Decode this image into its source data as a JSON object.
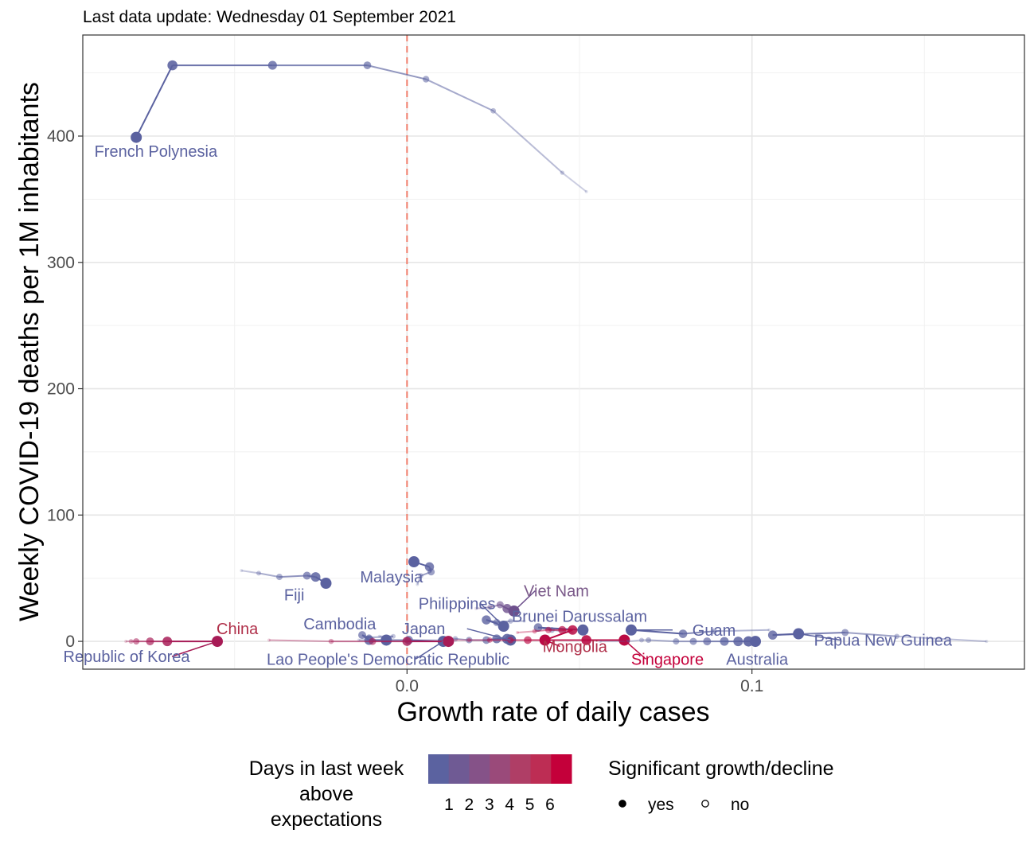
{
  "subtitle": "Last data update: Wednesday 01 September 2021",
  "chart_data": {
    "type": "scatter",
    "xlabel": "Growth rate of daily cases",
    "ylabel": "Weekly COVID-19 deaths per 1M inhabitants",
    "xlim": [
      -0.094,
      0.179
    ],
    "ylim": [
      -22,
      480
    ],
    "x_ticks": [
      {
        "value": 0.0,
        "label": "0.0"
      },
      {
        "value": 0.1,
        "label": "0.1"
      }
    ],
    "y_ticks": [
      {
        "value": 0,
        "label": "0"
      },
      {
        "value": 100,
        "label": "100"
      },
      {
        "value": 200,
        "label": "200"
      },
      {
        "value": 300,
        "label": "300"
      },
      {
        "value": 400,
        "label": "400"
      }
    ],
    "reference_line": {
      "x": 0,
      "style": "dashed",
      "color": "#F07D6B"
    },
    "grid": true,
    "color_scale": {
      "low": "#5B62A0",
      "high": "#C4003A"
    },
    "countries": [
      {
        "name": "French Polynesia",
        "days": 1,
        "label_color": "#5B62A0",
        "points": [
          [
            0.052,
            356
          ],
          [
            0.045,
            371
          ],
          [
            0.025,
            420
          ],
          [
            0.0055,
            445
          ],
          [
            -0.0115,
            456
          ],
          [
            -0.039,
            456
          ],
          [
            -0.068,
            456
          ],
          [
            -0.0785,
            399
          ]
        ]
      },
      {
        "name": "Fiji",
        "days": 1,
        "label_color": "#5B62A0",
        "points": [
          [
            -0.048,
            56
          ],
          [
            -0.043,
            54
          ],
          [
            -0.037,
            51
          ],
          [
            -0.029,
            52
          ],
          [
            -0.0265,
            51
          ],
          [
            -0.0235,
            46
          ]
        ]
      },
      {
        "name": "Malaysia",
        "days": 1,
        "label_color": "#5B62A0",
        "points": [
          [
            0.003,
            45
          ],
          [
            0.004,
            52
          ],
          [
            0.007,
            55
          ],
          [
            0.0065,
            59
          ],
          [
            0.002,
            63
          ]
        ]
      },
      {
        "name": "Viet Nam",
        "days": 2,
        "label_color": "#7B5A8A",
        "points": [
          [
            0.02,
            26
          ],
          [
            0.024,
            27
          ],
          [
            0.027,
            29
          ],
          [
            0.029,
            26
          ],
          [
            0.031,
            24
          ]
        ]
      },
      {
        "name": "Philippines",
        "days": 1,
        "label_color": "#5B62A0",
        "points": [
          [
            0.034,
            16
          ],
          [
            0.03,
            16
          ],
          [
            0.026,
            15
          ],
          [
            0.023,
            17
          ],
          [
            0.028,
            12
          ]
        ]
      },
      {
        "name": "Brunei Darussalam",
        "days": 1,
        "label_color": "#5B62A0",
        "points": [
          [
            0.048,
            7
          ],
          [
            0.042,
            9
          ],
          [
            0.038,
            11
          ],
          [
            0.051,
            9
          ]
        ]
      },
      {
        "name": "Guam",
        "days": 1,
        "label_color": "#5B62A0",
        "points": [
          [
            0.105,
            9
          ],
          [
            0.089,
            8
          ],
          [
            0.08,
            6
          ],
          [
            0.065,
            9
          ]
        ]
      },
      {
        "name": "Papua New Guinea",
        "days": 1,
        "label_color": "#5B62A0",
        "points": [
          [
            0.168,
            0
          ],
          [
            0.142,
            4
          ],
          [
            0.127,
            7
          ],
          [
            0.106,
            5
          ],
          [
            0.1135,
            6
          ]
        ]
      },
      {
        "name": "Cambodia",
        "days": 1,
        "label_color": "#5B62A0",
        "points": [
          [
            -0.008,
            4
          ],
          [
            -0.004,
            4
          ],
          [
            -0.011,
            3
          ],
          [
            -0.013,
            5
          ],
          [
            -0.011,
            1
          ],
          [
            -0.006,
            1
          ]
        ]
      },
      {
        "name": "Japan",
        "days": 1,
        "label_color": "#5B62A0",
        "points": [
          [
            0.0,
            1
          ],
          [
            0.011,
            1
          ],
          [
            0.014,
            2
          ],
          [
            0.018,
            1
          ],
          [
            0.023,
            1
          ],
          [
            0.026,
            2
          ],
          [
            0.029,
            2
          ],
          [
            0.03,
            1
          ]
        ]
      },
      {
        "name": "Lao People's Democratic Republic",
        "days": 1,
        "label_color": "#5B62A0",
        "points": [
          [
            -0.014,
            1
          ],
          [
            -0.006,
            1
          ],
          [
            0.0005,
            1
          ],
          [
            0.0105,
            0
          ]
        ]
      },
      {
        "name": "Mongolia",
        "days": 6,
        "label_color": "#C4003A",
        "points": [
          [
            0.032,
            7
          ],
          [
            0.037,
            8
          ],
          [
            0.041,
            9
          ],
          [
            0.045,
            9
          ],
          [
            0.048,
            9
          ],
          [
            0.04,
            1
          ]
        ]
      },
      {
        "name": "Singapore",
        "days": 6,
        "label_color": "#C4003A",
        "points": [
          [
            0.013,
            1
          ],
          [
            0.018,
            1
          ],
          [
            0.024,
            1
          ],
          [
            0.03,
            1
          ],
          [
            0.035,
            1
          ],
          [
            0.04,
            1
          ],
          [
            0.052,
            1
          ],
          [
            0.063,
            1
          ]
        ]
      },
      {
        "name": "Australia",
        "days": 1,
        "label_color": "#5B62A0",
        "points": [
          [
            0.056,
            0
          ],
          [
            0.064,
            0
          ],
          [
            0.068,
            1
          ],
          [
            0.07,
            1
          ],
          [
            0.078,
            0
          ],
          [
            0.083,
            0
          ],
          [
            0.087,
            0
          ],
          [
            0.092,
            0
          ],
          [
            0.096,
            0
          ],
          [
            0.099,
            0
          ],
          [
            0.101,
            0
          ]
        ]
      },
      {
        "name": "China",
        "days": 5,
        "label_color": "#B0304A",
        "points": [
          [
            -0.04,
            1
          ],
          [
            -0.022,
            0
          ],
          [
            -0.01,
            0
          ],
          [
            0.0,
            0
          ],
          [
            0.012,
            0
          ]
        ]
      },
      {
        "name": "Republic of Korea",
        "days": 5,
        "label_color": "#B0304A",
        "points": [
          [
            -0.0815,
            0
          ],
          [
            -0.08,
            0
          ],
          [
            -0.0785,
            0
          ],
          [
            -0.0745,
            0
          ],
          [
            -0.0695,
            0
          ],
          [
            -0.055,
            0
          ]
        ]
      }
    ],
    "labels": [
      {
        "name": "French Polynesia",
        "x": -0.0728,
        "y": 388,
        "color": "#5B62A0"
      },
      {
        "name": "Fiji",
        "x": -0.0327,
        "y": 37,
        "color": "#5B62A0"
      },
      {
        "name": "Malaysia",
        "x": -0.0045,
        "y": 51,
        "color": "#5B62A0"
      },
      {
        "name": "Viet Nam",
        "x": 0.0433,
        "y": 40,
        "color": "#7B5A8A"
      },
      {
        "name": "Philippines",
        "x": 0.0145,
        "y": 30,
        "color": "#5B62A0"
      },
      {
        "name": "Brunei Darussalam",
        "x": 0.05,
        "y": 20,
        "color": "#5B62A0"
      },
      {
        "name": "Guam",
        "x": 0.089,
        "y": 9,
        "color": "#5B62A0"
      },
      {
        "name": "Papua New Guinea",
        "x": 0.138,
        "y": 1,
        "color": "#5B62A0"
      },
      {
        "name": "Cambodia",
        "x": -0.0195,
        "y": 14,
        "color": "#5B62A0"
      },
      {
        "name": "Japan",
        "x": 0.0048,
        "y": 10,
        "color": "#5B62A0"
      },
      {
        "name": "Lao People's Democratic Republic",
        "x": -0.0055,
        "y": -14,
        "color": "#5B62A0"
      },
      {
        "name": "Mongolia",
        "x": 0.0487,
        "y": -4,
        "color": "#B0304A"
      },
      {
        "name": "Singapore",
        "x": 0.0755,
        "y": -14,
        "color": "#C4003A"
      },
      {
        "name": "Australia",
        "x": 0.1015,
        "y": -14,
        "color": "#5B62A0"
      },
      {
        "name": "China",
        "x": -0.0492,
        "y": 10,
        "color": "#B0304A"
      },
      {
        "name": "Republic of Korea",
        "x": -0.0813,
        "y": -12,
        "color": "#5B62A0"
      }
    ],
    "legend_days": {
      "title": "Days in last week above expectations",
      "title_lines": [
        "Days in last week",
        "above",
        "expectations"
      ],
      "tick_labels": [
        "1",
        "2",
        "3",
        "4",
        "5",
        "6"
      ],
      "colors": [
        "#5B62A0",
        "#6F5A94",
        "#855288",
        "#9A4A7A",
        "#AF3E66",
        "#BD2D54",
        "#C4003A"
      ]
    },
    "legend_significance": {
      "title": "Significant growth/decline",
      "entries": [
        {
          "label": "yes",
          "filled": true
        },
        {
          "label": "no",
          "filled": false
        }
      ]
    }
  }
}
